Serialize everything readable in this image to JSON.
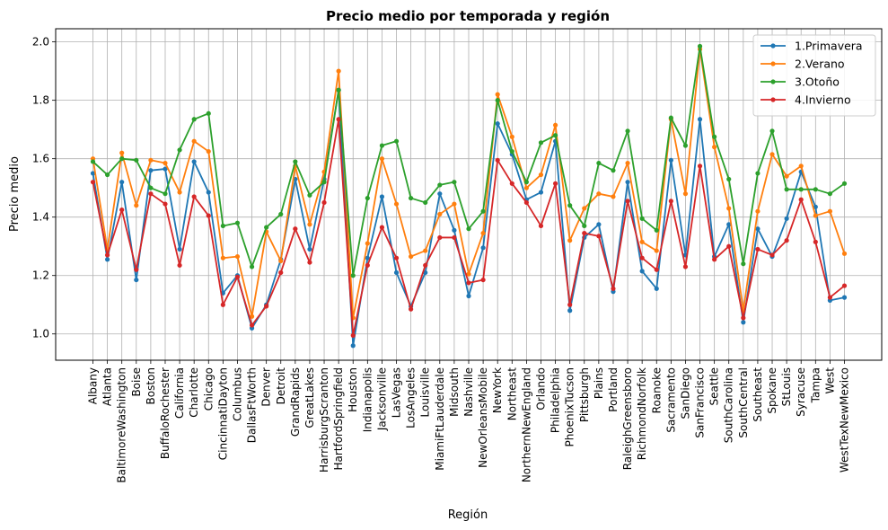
{
  "chart_data": {
    "type": "line",
    "title": "Precio medio por temporada y región",
    "xlabel": "Región",
    "ylabel": "Precio medio",
    "ylim": [
      0.91,
      2.045
    ],
    "yticks": [
      "1.0",
      "1.2",
      "1.4",
      "1.6",
      "1.8",
      "2.0"
    ],
    "grid": true,
    "legend_position": "top-right",
    "categories": [
      "Albany",
      "Atlanta",
      "BaltimoreWashington",
      "Boise",
      "Boston",
      "BuffaloRochester",
      "California",
      "Charlotte",
      "Chicago",
      "CincinnatiDayton",
      "Columbus",
      "DallasFtWorth",
      "Denver",
      "Detroit",
      "GrandRapids",
      "GreatLakes",
      "HarrisburgScranton",
      "HartfordSpringfield",
      "Houston",
      "Indianapolis",
      "Jacksonville",
      "LasVegas",
      "LosAngeles",
      "Louisville",
      "MiamiFtLauderdale",
      "Midsouth",
      "Nashville",
      "NewOrleansMobile",
      "NewYork",
      "Northeast",
      "NorthernNewEngland",
      "Orlando",
      "Philadelphia",
      "PhoenixTucson",
      "Pittsburgh",
      "Plains",
      "Portland",
      "RaleighGreensboro",
      "RichmondNorfolk",
      "Roanoke",
      "Sacramento",
      "SanDiego",
      "SanFrancisco",
      "Seattle",
      "SouthCarolina",
      "SouthCentral",
      "Southeast",
      "Spokane",
      "StLouis",
      "Syracuse",
      "Tampa",
      "West",
      "WestTexNewMexico"
    ],
    "series": [
      {
        "name": "1.Primavera",
        "color": "#1f77b4",
        "values": [
          1.55,
          1.255,
          1.52,
          1.185,
          1.56,
          1.565,
          1.29,
          1.59,
          1.485,
          1.14,
          1.2,
          1.02,
          1.1,
          1.255,
          1.53,
          1.29,
          1.53,
          1.835,
          0.96,
          1.26,
          1.47,
          1.21,
          1.095,
          1.21,
          1.48,
          1.355,
          1.13,
          1.295,
          1.72,
          1.615,
          1.46,
          1.485,
          1.66,
          1.08,
          1.33,
          1.375,
          1.145,
          1.52,
          1.215,
          1.155,
          1.595,
          1.27,
          1.735,
          1.265,
          1.375,
          1.04,
          1.36,
          1.265,
          1.395,
          1.555,
          1.435,
          1.115,
          1.125
        ]
      },
      {
        "name": "2.Verano",
        "color": "#ff7f0e",
        "values": [
          1.6,
          1.29,
          1.62,
          1.44,
          1.595,
          1.585,
          1.485,
          1.66,
          1.625,
          1.26,
          1.265,
          1.06,
          1.35,
          1.25,
          1.575,
          1.375,
          1.555,
          1.9,
          1.055,
          1.31,
          1.6,
          1.445,
          1.265,
          1.285,
          1.41,
          1.445,
          1.205,
          1.345,
          1.82,
          1.675,
          1.5,
          1.545,
          1.715,
          1.32,
          1.43,
          1.48,
          1.47,
          1.585,
          1.315,
          1.285,
          1.735,
          1.48,
          1.975,
          1.64,
          1.43,
          1.08,
          1.42,
          1.615,
          1.54,
          1.575,
          1.405,
          1.42,
          1.275
        ]
      },
      {
        "name": "3.Otoño",
        "color": "#2ca02c",
        "values": [
          1.59,
          1.545,
          1.6,
          1.595,
          1.5,
          1.48,
          1.63,
          1.735,
          1.755,
          1.37,
          1.38,
          1.23,
          1.365,
          1.41,
          1.59,
          1.475,
          1.52,
          1.835,
          1.2,
          1.465,
          1.645,
          1.66,
          1.465,
          1.45,
          1.51,
          1.52,
          1.36,
          1.42,
          1.8,
          1.625,
          1.52,
          1.655,
          1.68,
          1.44,
          1.37,
          1.585,
          1.56,
          1.695,
          1.395,
          1.355,
          1.74,
          1.645,
          1.985,
          1.675,
          1.53,
          1.24,
          1.55,
          1.695,
          1.495,
          1.495,
          1.495,
          1.48,
          1.515
        ]
      },
      {
        "name": "4.Invierno",
        "color": "#d62728",
        "values": [
          1.52,
          1.27,
          1.425,
          1.22,
          1.48,
          1.445,
          1.235,
          1.47,
          1.405,
          1.1,
          1.195,
          1.03,
          1.095,
          1.21,
          1.36,
          1.245,
          1.45,
          1.735,
          0.995,
          1.235,
          1.365,
          1.26,
          1.085,
          1.235,
          1.33,
          1.33,
          1.175,
          1.185,
          1.595,
          1.515,
          1.45,
          1.37,
          1.515,
          1.1,
          1.345,
          1.335,
          1.155,
          1.455,
          1.26,
          1.22,
          1.455,
          1.23,
          1.575,
          1.255,
          1.3,
          1.055,
          1.29,
          1.27,
          1.32,
          1.46,
          1.315,
          1.125,
          1.165
        ]
      }
    ]
  }
}
